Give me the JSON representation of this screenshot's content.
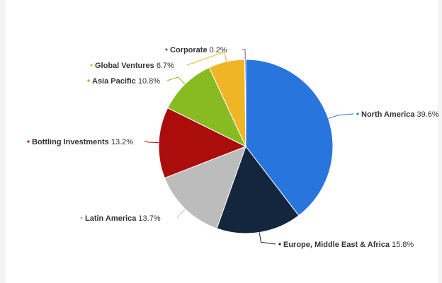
{
  "chart_data": {
    "type": "pie",
    "title": "",
    "unit": "%",
    "slices": [
      {
        "label": "North America",
        "value": 39.6,
        "display": "39.6%",
        "color": "#2876dd"
      },
      {
        "label": "Europe, Middle East & Africa",
        "value": 15.8,
        "display": "15.8%",
        "color": "#13263d"
      },
      {
        "label": "Latin America",
        "value": 13.7,
        "display": "13.7%",
        "color": "#bcbcbc"
      },
      {
        "label": "Bottling Investments",
        "value": 13.2,
        "display": "13.2%",
        "color": "#ab0c0c"
      },
      {
        "label": "Asia Pacific",
        "value": 10.8,
        "display": "10.8%",
        "color": "#88bb22"
      },
      {
        "label": "Global Ventures",
        "value": 6.7,
        "display": "6.7%",
        "color": "#f0b525"
      },
      {
        "label": "Corporate",
        "value": 0.2,
        "display": "0.2%",
        "color": "#7a4e9e"
      }
    ],
    "start_angle_deg": 0,
    "direction": "clockwise",
    "legend": "none",
    "data_labels": "outside-with-connectors"
  }
}
